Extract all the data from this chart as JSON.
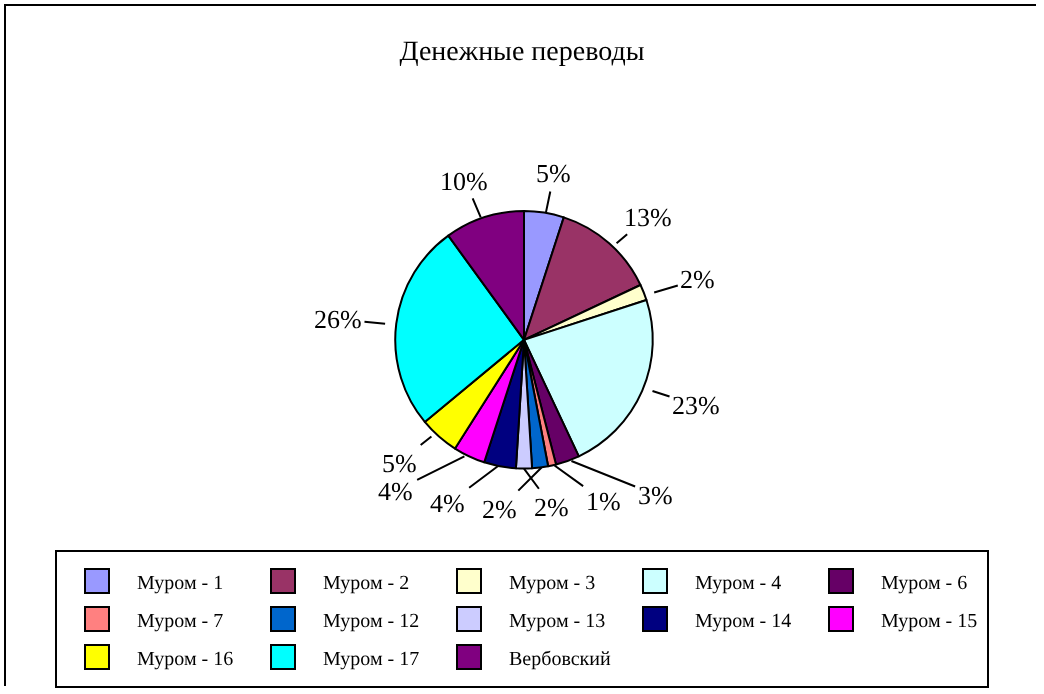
{
  "chart_data": {
    "type": "pie",
    "title": "Денежные переводы",
    "categories": [
      "Муром - 1",
      "Муром - 2",
      "Муром - 3",
      "Муром - 4",
      "Муром - 6",
      "Муром - 7",
      "Муром - 12",
      "Муром - 13",
      "Муром - 14",
      "Муром - 15",
      "Муром - 16",
      "Муром - 17",
      "Вербовский"
    ],
    "values": [
      5,
      13,
      2,
      23,
      3,
      1,
      2,
      2,
      4,
      4,
      5,
      26,
      10
    ],
    "colors": [
      "#9999ff",
      "#993366",
      "#ffffcc",
      "#ccffff",
      "#660066",
      "#ff8080",
      "#0066cc",
      "#ccccff",
      "#000080",
      "#ff00ff",
      "#ffff00",
      "#00ffff",
      "#800080"
    ],
    "value_labels": [
      "5%",
      "13%",
      "2%",
      "23%",
      "3%",
      "1%",
      "2%",
      "2%",
      "4%",
      "4%",
      "5%",
      "26%",
      "10%"
    ],
    "legend": "bottom"
  }
}
